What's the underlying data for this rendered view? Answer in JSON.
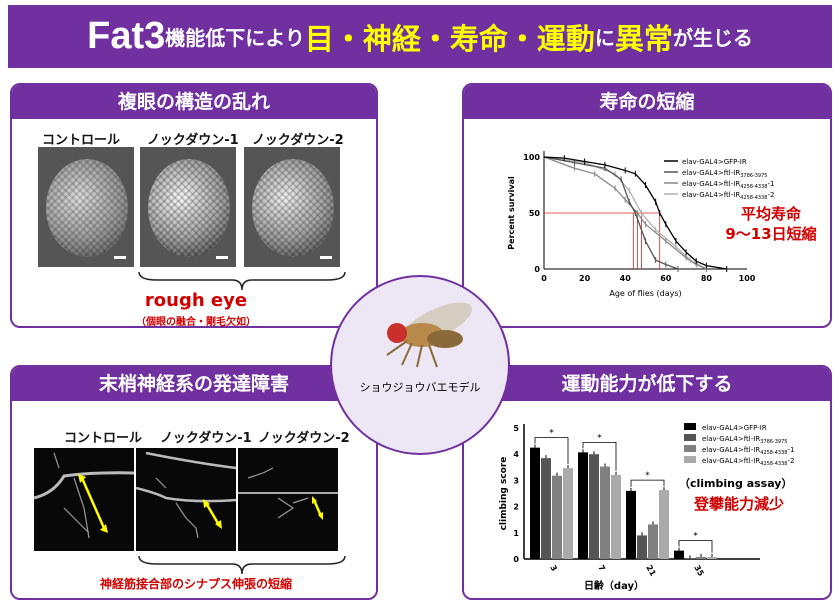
{
  "header": {
    "part1": "Fat3",
    "part2": "機能低下により",
    "part3": "目・神経・寿命・運動",
    "part4": "に",
    "part5": "異常",
    "part6": "が生じる"
  },
  "colors": {
    "brand": "#7030a0",
    "highlight": "#ffff00",
    "accent_red": "#d00000",
    "arrow": "#ffff00"
  },
  "eye_panel": {
    "title": "複眼の構造の乱れ",
    "labels": [
      "コントロール",
      "ノックダウン-1",
      "ノックダウン-2"
    ],
    "result": "rough eye",
    "result_note": "（個眼の融合・剛毛欠如）"
  },
  "nerve_panel": {
    "title": "末梢神経系の発達障害",
    "labels": [
      "コントロール",
      "ノックダウン-1",
      "ノックダウン-2"
    ],
    "result": "神経筋接合部のシナプス伸張の短縮"
  },
  "center": {
    "label": "ショウジョウバエモデル",
    "icon": "fruit-fly"
  },
  "lifespan_panel": {
    "title": "寿命の短縮",
    "annotation_line1": "平均寿命",
    "annotation_line2": "9～13日短縮"
  },
  "motor_panel": {
    "title": "運動能力が低下する",
    "assay": "（climbing assay）",
    "annotation": "登攀能力減少"
  },
  "chart_data": [
    {
      "type": "line",
      "xlabel": "Age of flies (days)",
      "ylabel": "Percent survival",
      "xlim": [
        0,
        100
      ],
      "ylim": [
        0,
        100
      ],
      "xticks": [
        0,
        20,
        40,
        60,
        80,
        100
      ],
      "yticks": [
        0,
        50,
        100
      ],
      "legend": "top-right",
      "median_lines": [
        44,
        46,
        48,
        57
      ],
      "series": [
        {
          "name": "elav-GAL4>GFP-IR",
          "sub": "",
          "color": "#000000",
          "x": [
            0,
            10,
            20,
            30,
            40,
            45,
            50,
            55,
            57,
            60,
            65,
            70,
            75,
            80,
            90
          ],
          "y": [
            100,
            99,
            96,
            93,
            88,
            85,
            75,
            60,
            50,
            40,
            25,
            15,
            7,
            3,
            0
          ]
        },
        {
          "name": "elav-GAL4>ftl-IR",
          "sub": "3786-3975",
          "color": "#555555",
          "x": [
            0,
            15,
            30,
            38,
            42,
            45,
            50,
            55,
            60,
            66
          ],
          "y": [
            100,
            95,
            90,
            80,
            60,
            50,
            25,
            8,
            4,
            0
          ]
        },
        {
          "name": "elav-GAL4>ftl-IR",
          "sub": "4258-4338",
          "suffix": "-1",
          "color": "#888888",
          "x": [
            0,
            15,
            25,
            35,
            40,
            46,
            50,
            60,
            70,
            75,
            80
          ],
          "y": [
            100,
            90,
            85,
            72,
            62,
            50,
            40,
            25,
            10,
            4,
            0
          ]
        },
        {
          "name": "elav-GAL4>ftl-IR",
          "sub": "4258-4338",
          "suffix": "-2",
          "color": "#b0b0b0",
          "x": [
            0,
            20,
            35,
            42,
            48,
            55,
            65,
            72,
            80
          ],
          "y": [
            100,
            95,
            85,
            70,
            50,
            35,
            20,
            8,
            0
          ]
        }
      ]
    },
    {
      "type": "bar",
      "xlabel": "日齢（day）",
      "ylabel": "climbing score",
      "ylim": [
        0,
        5
      ],
      "yticks": [
        0,
        1,
        2,
        3,
        4,
        5
      ],
      "categories": [
        "3",
        "7",
        "21",
        "35"
      ],
      "legend": "top-right",
      "significance": "*",
      "series": [
        {
          "name": "elav-GAL4>GFP-IR",
          "sub": "",
          "color": "#000000",
          "values": [
            4.25,
            4.07,
            2.6,
            0.32
          ]
        },
        {
          "name": "elav-GAL4>ftl-IR",
          "sub": "3786-3975",
          "color": "#555555",
          "values": [
            3.85,
            4.0,
            0.9,
            0.02
          ]
        },
        {
          "name": "elav-GAL4>ftl-IR",
          "sub": "4258-4338",
          "suffix": "-1",
          "color": "#808080",
          "values": [
            3.18,
            3.53,
            1.32,
            0.08
          ]
        },
        {
          "name": "elav-GAL4>ftl-IR",
          "sub": "4258-4338",
          "suffix": "-2",
          "color": "#aaaaaa",
          "values": [
            3.47,
            3.21,
            2.63,
            0.08
          ]
        }
      ]
    }
  ]
}
